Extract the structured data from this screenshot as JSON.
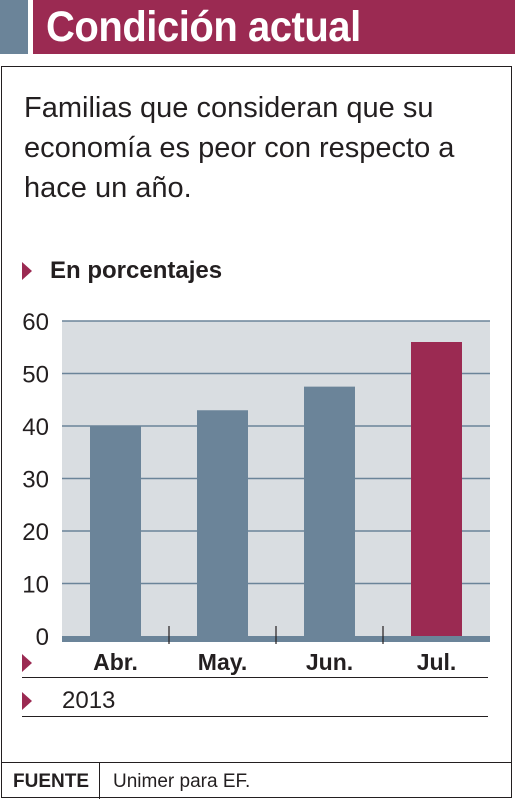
{
  "header": {
    "title": "Condición actual"
  },
  "subtitle": "Familias que consideran que su economía es peor con respecto a hace un año.",
  "units_label": "En porcentajes",
  "year_label": "2013",
  "footer": {
    "source_key": "FUENTE",
    "source_value": "Unimer para EF."
  },
  "colors": {
    "header_bar": "#9b2a52",
    "header_tab": "#6b8499",
    "bar_default": "#6b8499",
    "bar_highlight": "#9b2a52",
    "plot_background": "#d9dde1",
    "gridline": "#6b8499"
  },
  "chart_data": {
    "type": "bar",
    "title": "",
    "xlabel": "",
    "ylabel": "",
    "categories": [
      "Abr.",
      "May.",
      "Jun.",
      "Jul."
    ],
    "values": [
      40,
      43,
      47.5,
      56
    ],
    "highlight_index": 3,
    "ylim": [
      0,
      60
    ],
    "yticks": [
      0,
      10,
      20,
      30,
      40,
      50,
      60
    ],
    "grid": true,
    "legend": "none"
  }
}
